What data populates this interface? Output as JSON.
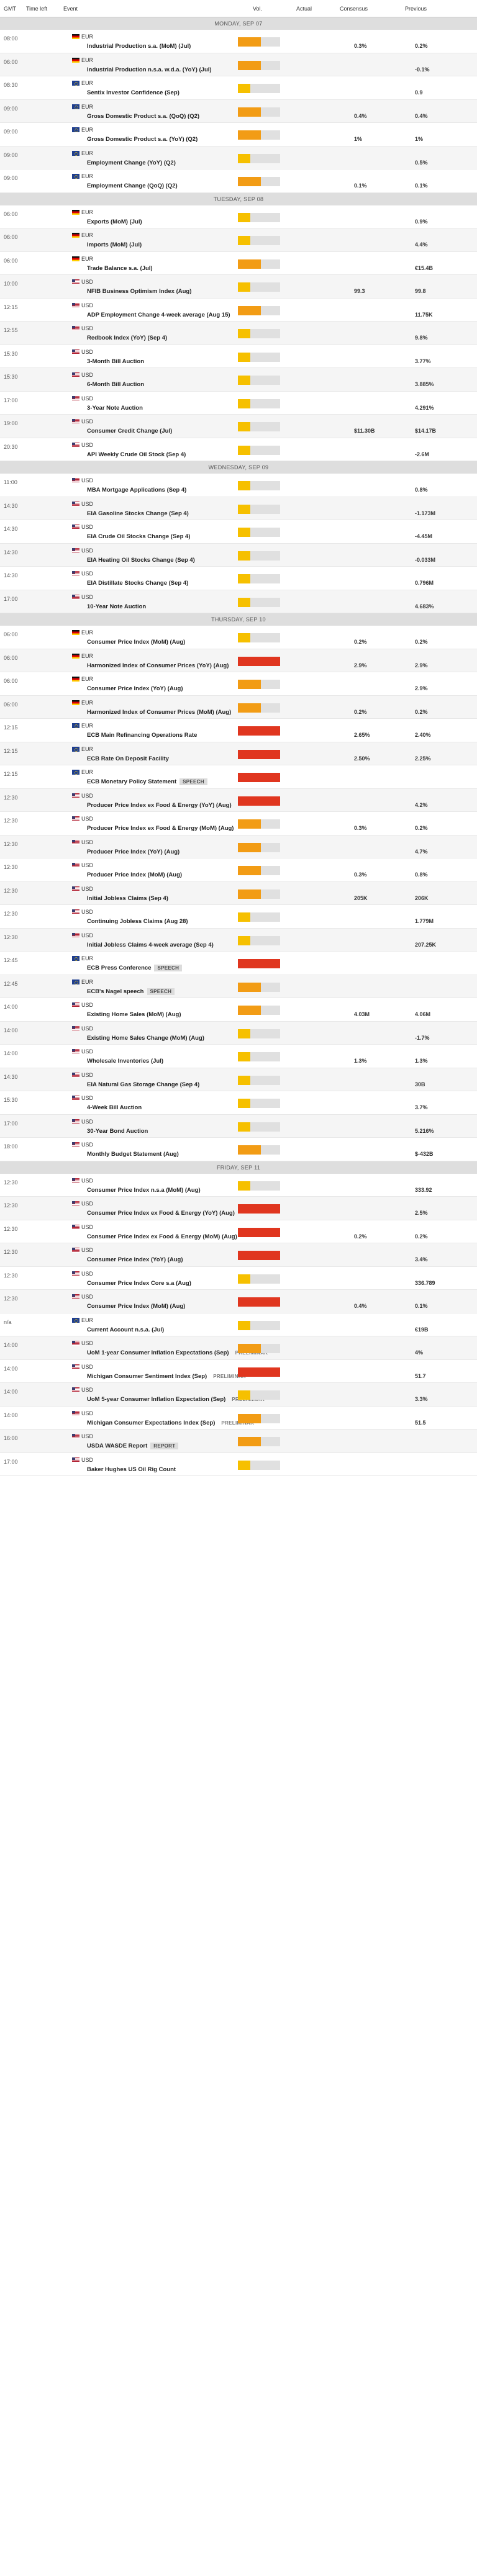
{
  "header": {
    "gmt": "GMT",
    "time_left": "Time left",
    "event": "Event",
    "vol": "Vol.",
    "actual": "Actual",
    "consensus": "Consensus",
    "previous": "Previous"
  },
  "days": [
    {
      "label": "MONDAY, SEP 07",
      "events": [
        {
          "time": "08:00",
          "currency": "EUR",
          "flag": "DE",
          "name": "Industrial Production s.a. (MoM) (Jul)",
          "tag": "",
          "volatility": 0.55,
          "level": "med",
          "actual": "",
          "consensus": "0.3%",
          "previous": "0.2%"
        },
        {
          "time": "06:00",
          "currency": "EUR",
          "flag": "DE",
          "name": "Industrial Production n.s.a. w.d.a. (YoY) (Jul)",
          "tag": "",
          "volatility": 0.55,
          "level": "med",
          "actual": "",
          "consensus": "",
          "previous": "-0.1%"
        },
        {
          "time": "08:30",
          "currency": "EUR",
          "flag": "EUR",
          "name": "Sentix Investor Confidence (Sep)",
          "tag": "",
          "volatility": 0.3,
          "level": "low",
          "actual": "",
          "consensus": "",
          "previous": "0.9"
        },
        {
          "time": "09:00",
          "currency": "EUR",
          "flag": "EUR",
          "name": "Gross Domestic Product s.a. (QoQ) (Q2)",
          "tag": "",
          "volatility": 0.55,
          "level": "med",
          "actual": "",
          "consensus": "0.4%",
          "previous": "0.4%"
        },
        {
          "time": "09:00",
          "currency": "EUR",
          "flag": "EUR",
          "name": "Gross Domestic Product s.a. (YoY) (Q2)",
          "tag": "",
          "volatility": 0.55,
          "level": "med",
          "actual": "",
          "consensus": "1%",
          "previous": "1%"
        },
        {
          "time": "09:00",
          "currency": "EUR",
          "flag": "EUR",
          "name": "Employment Change (YoY) (Q2)",
          "tag": "",
          "volatility": 0.3,
          "level": "low",
          "actual": "",
          "consensus": "",
          "previous": "0.5%"
        },
        {
          "time": "09:00",
          "currency": "EUR",
          "flag": "EUR",
          "name": "Employment Change (QoQ) (Q2)",
          "tag": "",
          "volatility": 0.55,
          "level": "med",
          "actual": "",
          "consensus": "0.1%",
          "previous": "0.1%"
        }
      ]
    },
    {
      "label": "TUESDAY, SEP 08",
      "events": [
        {
          "time": "06:00",
          "currency": "EUR",
          "flag": "DE",
          "name": "Exports (MoM) (Jul)",
          "tag": "",
          "volatility": 0.3,
          "level": "low",
          "actual": "",
          "consensus": "",
          "previous": "0.9%"
        },
        {
          "time": "06:00",
          "currency": "EUR",
          "flag": "DE",
          "name": "Imports (MoM) (Jul)",
          "tag": "",
          "volatility": 0.3,
          "level": "low",
          "actual": "",
          "consensus": "",
          "previous": "4.4%"
        },
        {
          "time": "06:00",
          "currency": "EUR",
          "flag": "DE",
          "name": "Trade Balance s.a. (Jul)",
          "tag": "",
          "volatility": 0.55,
          "level": "med",
          "actual": "",
          "consensus": "",
          "previous": "€15.4B"
        },
        {
          "time": "10:00",
          "currency": "USD",
          "flag": "US",
          "name": "NFIB Business Optimism Index (Aug)",
          "tag": "",
          "volatility": 0.3,
          "level": "low",
          "actual": "",
          "consensus": "99.3",
          "previous": "99.8"
        },
        {
          "time": "12:15",
          "currency": "USD",
          "flag": "US",
          "name": "ADP Employment Change 4-week average (Aug 15)",
          "tag": "",
          "volatility": 0.55,
          "level": "med",
          "actual": "",
          "consensus": "",
          "previous": "11.75K"
        },
        {
          "time": "12:55",
          "currency": "USD",
          "flag": "US",
          "name": "Redbook Index (YoY) (Sep 4)",
          "tag": "",
          "volatility": 0.3,
          "level": "low",
          "actual": "",
          "consensus": "",
          "previous": "9.8%"
        },
        {
          "time": "15:30",
          "currency": "USD",
          "flag": "US",
          "name": "3-Month Bill Auction",
          "tag": "",
          "volatility": 0.3,
          "level": "low",
          "actual": "",
          "consensus": "",
          "previous": "3.77%"
        },
        {
          "time": "15:30",
          "currency": "USD",
          "flag": "US",
          "name": "6-Month Bill Auction",
          "tag": "",
          "volatility": 0.3,
          "level": "low",
          "actual": "",
          "consensus": "",
          "previous": "3.885%"
        },
        {
          "time": "17:00",
          "currency": "USD",
          "flag": "US",
          "name": "3-Year Note Auction",
          "tag": "",
          "volatility": 0.3,
          "level": "low",
          "actual": "",
          "consensus": "",
          "previous": "4.291%"
        },
        {
          "time": "19:00",
          "currency": "USD",
          "flag": "US",
          "name": "Consumer Credit Change (Jul)",
          "tag": "",
          "volatility": 0.3,
          "level": "low",
          "actual": "",
          "consensus": "$11.30B",
          "previous": "$14.17B"
        },
        {
          "time": "20:30",
          "currency": "USD",
          "flag": "US",
          "name": "API Weekly Crude Oil Stock (Sep 4)",
          "tag": "",
          "volatility": 0.3,
          "level": "low",
          "actual": "",
          "consensus": "",
          "previous": "-2.6M"
        }
      ]
    },
    {
      "label": "WEDNESDAY, SEP 09",
      "events": [
        {
          "time": "11:00",
          "currency": "USD",
          "flag": "US",
          "name": "MBA Mortgage Applications (Sep 4)",
          "tag": "",
          "volatility": 0.3,
          "level": "low",
          "actual": "",
          "consensus": "",
          "previous": "0.8%"
        },
        {
          "time": "14:30",
          "currency": "USD",
          "flag": "US",
          "name": "EIA Gasoline Stocks Change (Sep 4)",
          "tag": "",
          "volatility": 0.3,
          "level": "low",
          "actual": "",
          "consensus": "",
          "previous": "-1.173M"
        },
        {
          "time": "14:30",
          "currency": "USD",
          "flag": "US",
          "name": "EIA Crude Oil Stocks Change (Sep 4)",
          "tag": "",
          "volatility": 0.3,
          "level": "low",
          "actual": "",
          "consensus": "",
          "previous": "-4.45M"
        },
        {
          "time": "14:30",
          "currency": "USD",
          "flag": "US",
          "name": "EIA Heating Oil Stocks Change (Sep 4)",
          "tag": "",
          "volatility": 0.3,
          "level": "low",
          "actual": "",
          "consensus": "",
          "previous": "-0.033M"
        },
        {
          "time": "14:30",
          "currency": "USD",
          "flag": "US",
          "name": "EIA Distillate Stocks Change (Sep 4)",
          "tag": "",
          "volatility": 0.3,
          "level": "low",
          "actual": "",
          "consensus": "",
          "previous": "0.796M"
        },
        {
          "time": "17:00",
          "currency": "USD",
          "flag": "US",
          "name": "10-Year Note Auction",
          "tag": "",
          "volatility": 0.3,
          "level": "low",
          "actual": "",
          "consensus": "",
          "previous": "4.683%"
        }
      ]
    },
    {
      "label": "THURSDAY, SEP 10",
      "events": [
        {
          "time": "06:00",
          "currency": "EUR",
          "flag": "DE",
          "name": "Consumer Price Index (MoM) (Aug)",
          "tag": "",
          "volatility": 0.3,
          "level": "low",
          "actual": "",
          "consensus": "0.2%",
          "previous": "0.2%"
        },
        {
          "time": "06:00",
          "currency": "EUR",
          "flag": "DE",
          "name": "Harmonized Index of Consumer Prices (YoY) (Aug)",
          "tag": "",
          "volatility": 1,
          "level": "high",
          "actual": "",
          "consensus": "2.9%",
          "previous": "2.9%"
        },
        {
          "time": "06:00",
          "currency": "EUR",
          "flag": "DE",
          "name": "Consumer Price Index (YoY) (Aug)",
          "tag": "",
          "volatility": 0.55,
          "level": "med",
          "actual": "",
          "consensus": "",
          "previous": "2.9%"
        },
        {
          "time": "06:00",
          "currency": "EUR",
          "flag": "DE",
          "name": "Harmonized Index of Consumer Prices (MoM) (Aug)",
          "tag": "",
          "volatility": 0.55,
          "level": "med",
          "actual": "",
          "consensus": "0.2%",
          "previous": "0.2%"
        },
        {
          "time": "12:15",
          "currency": "EUR",
          "flag": "EUR",
          "name": "ECB Main Refinancing Operations Rate",
          "tag": "",
          "volatility": 1,
          "level": "high",
          "actual": "",
          "consensus": "2.65%",
          "previous": "2.40%"
        },
        {
          "time": "12:15",
          "currency": "EUR",
          "flag": "EUR",
          "name": "ECB Rate On Deposit Facility",
          "tag": "",
          "volatility": 1,
          "level": "high",
          "actual": "",
          "consensus": "2.50%",
          "previous": "2.25%"
        },
        {
          "time": "12:15",
          "currency": "EUR",
          "flag": "EUR",
          "name": "ECB Monetary Policy Statement",
          "tag": "SPEECH",
          "volatility": 1,
          "level": "high",
          "actual": "",
          "consensus": "",
          "previous": ""
        },
        {
          "time": "12:30",
          "currency": "USD",
          "flag": "US",
          "name": "Producer Price Index ex Food & Energy (YoY) (Aug)",
          "tag": "",
          "volatility": 1,
          "level": "high",
          "actual": "",
          "consensus": "",
          "previous": "4.2%"
        },
        {
          "time": "12:30",
          "currency": "USD",
          "flag": "US",
          "name": "Producer Price Index ex Food & Energy (MoM) (Aug)",
          "tag": "",
          "volatility": 0.55,
          "level": "med",
          "actual": "",
          "consensus": "0.3%",
          "previous": "0.2%"
        },
        {
          "time": "12:30",
          "currency": "USD",
          "flag": "US",
          "name": "Producer Price Index (YoY) (Aug)",
          "tag": "",
          "volatility": 0.55,
          "level": "med",
          "actual": "",
          "consensus": "",
          "previous": "4.7%"
        },
        {
          "time": "12:30",
          "currency": "USD",
          "flag": "US",
          "name": "Producer Price Index (MoM) (Aug)",
          "tag": "",
          "volatility": 0.55,
          "level": "med",
          "actual": "",
          "consensus": "0.3%",
          "previous": "0.8%"
        },
        {
          "time": "12:30",
          "currency": "USD",
          "flag": "US",
          "name": "Initial Jobless Claims (Sep 4)",
          "tag": "",
          "volatility": 0.55,
          "level": "med",
          "actual": "",
          "consensus": "205K",
          "previous": "206K"
        },
        {
          "time": "12:30",
          "currency": "USD",
          "flag": "US",
          "name": "Continuing Jobless Claims (Aug 28)",
          "tag": "",
          "volatility": 0.3,
          "level": "low",
          "actual": "",
          "consensus": "",
          "previous": "1.779M"
        },
        {
          "time": "12:30",
          "currency": "USD",
          "flag": "US",
          "name": "Initial Jobless Claims 4-week average (Sep 4)",
          "tag": "",
          "volatility": 0.3,
          "level": "low",
          "actual": "",
          "consensus": "",
          "previous": "207.25K"
        },
        {
          "time": "12:45",
          "currency": "EUR",
          "flag": "EUR",
          "name": "ECB Press Conference",
          "tag": "SPEECH",
          "volatility": 1,
          "level": "high",
          "actual": "",
          "consensus": "",
          "previous": ""
        },
        {
          "time": "12:45",
          "currency": "EUR",
          "flag": "EUR",
          "name": "ECB's Nagel speech",
          "tag": "SPEECH",
          "volatility": 0.55,
          "level": "med",
          "actual": "",
          "consensus": "",
          "previous": ""
        },
        {
          "time": "14:00",
          "currency": "USD",
          "flag": "US",
          "name": "Existing Home Sales (MoM) (Aug)",
          "tag": "",
          "volatility": 0.55,
          "level": "med",
          "actual": "",
          "consensus": "4.03M",
          "previous": "4.06M"
        },
        {
          "time": "14:00",
          "currency": "USD",
          "flag": "US",
          "name": "Existing Home Sales Change (MoM) (Aug)",
          "tag": "",
          "volatility": 0.3,
          "level": "low",
          "actual": "",
          "consensus": "",
          "previous": "-1.7%"
        },
        {
          "time": "14:00",
          "currency": "USD",
          "flag": "US",
          "name": "Wholesale Inventories (Jul)",
          "tag": "",
          "volatility": 0.3,
          "level": "low",
          "actual": "",
          "consensus": "1.3%",
          "previous": "1.3%"
        },
        {
          "time": "14:30",
          "currency": "USD",
          "flag": "US",
          "name": "EIA Natural Gas Storage Change (Sep 4)",
          "tag": "",
          "volatility": 0.3,
          "level": "low",
          "actual": "",
          "consensus": "",
          "previous": "30B"
        },
        {
          "time": "15:30",
          "currency": "USD",
          "flag": "US",
          "name": "4-Week Bill Auction",
          "tag": "",
          "volatility": 0.3,
          "level": "low",
          "actual": "",
          "consensus": "",
          "previous": "3.7%"
        },
        {
          "time": "17:00",
          "currency": "USD",
          "flag": "US",
          "name": "30-Year Bond Auction",
          "tag": "",
          "volatility": 0.3,
          "level": "low",
          "actual": "",
          "consensus": "",
          "previous": "5.216%"
        },
        {
          "time": "18:00",
          "currency": "USD",
          "flag": "US",
          "name": "Monthly Budget Statement (Aug)",
          "tag": "",
          "volatility": 0.55,
          "level": "med",
          "actual": "",
          "consensus": "",
          "previous": "$-432B"
        }
      ]
    },
    {
      "label": "FRIDAY, SEP 11",
      "events": [
        {
          "time": "12:30",
          "currency": "USD",
          "flag": "US",
          "name": "Consumer Price Index n.s.a (MoM) (Aug)",
          "tag": "",
          "volatility": 0.3,
          "level": "low",
          "actual": "",
          "consensus": "",
          "previous": "333.92"
        },
        {
          "time": "12:30",
          "currency": "USD",
          "flag": "US",
          "name": "Consumer Price Index ex Food & Energy (YoY) (Aug)",
          "tag": "",
          "volatility": 1,
          "level": "high",
          "actual": "",
          "consensus": "",
          "previous": "2.5%"
        },
        {
          "time": "12:30",
          "currency": "USD",
          "flag": "US",
          "name": "Consumer Price Index ex Food & Energy (MoM) (Aug)",
          "tag": "",
          "volatility": 1,
          "level": "high",
          "actual": "",
          "consensus": "0.2%",
          "previous": "0.2%"
        },
        {
          "time": "12:30",
          "currency": "USD",
          "flag": "US",
          "name": "Consumer Price Index (YoY) (Aug)",
          "tag": "",
          "volatility": 1,
          "level": "high",
          "actual": "",
          "consensus": "",
          "previous": "3.4%"
        },
        {
          "time": "12:30",
          "currency": "USD",
          "flag": "US",
          "name": "Consumer Price Index Core s.a (Aug)",
          "tag": "",
          "volatility": 0.3,
          "level": "low",
          "actual": "",
          "consensus": "",
          "previous": "336.789"
        },
        {
          "time": "12:30",
          "currency": "USD",
          "flag": "US",
          "name": "Consumer Price Index (MoM) (Aug)",
          "tag": "",
          "volatility": 1,
          "level": "high",
          "actual": "",
          "consensus": "0.4%",
          "previous": "0.1%"
        },
        {
          "time": "n/a",
          "currency": "EUR",
          "flag": "EUR",
          "name": "Current Account n.s.a. (Jul)",
          "tag": "",
          "volatility": 0.3,
          "level": "low",
          "actual": "",
          "consensus": "",
          "previous": "€19B"
        },
        {
          "time": "14:00",
          "currency": "USD",
          "flag": "US",
          "name": "UoM 1-year Consumer Inflation Expectations (Sep)",
          "tag": "PRELIMINAR",
          "volatility": 0.55,
          "level": "med",
          "actual": "",
          "consensus": "",
          "previous": "4%"
        },
        {
          "time": "14:00",
          "currency": "USD",
          "flag": "US",
          "name": "Michigan Consumer Sentiment Index (Sep)",
          "tag": "PRELIMINAR",
          "volatility": 1,
          "level": "high",
          "actual": "",
          "consensus": "",
          "previous": "51.7"
        },
        {
          "time": "14:00",
          "currency": "USD",
          "flag": "US",
          "name": "UoM 5-year Consumer Inflation Expectation (Sep)",
          "tag": "PRELIMINAR",
          "volatility": 0.3,
          "level": "low",
          "actual": "",
          "consensus": "",
          "previous": "3.3%"
        },
        {
          "time": "14:00",
          "currency": "USD",
          "flag": "US",
          "name": "Michigan Consumer Expectations Index (Sep)",
          "tag": "PRELIMINAR",
          "volatility": 0.55,
          "level": "med",
          "actual": "",
          "consensus": "",
          "previous": "51.5"
        },
        {
          "time": "16:00",
          "currency": "USD",
          "flag": "US",
          "name": "USDA WASDE Report",
          "tag": "REPORT",
          "volatility": 0.55,
          "level": "med",
          "actual": "",
          "consensus": "",
          "previous": ""
        },
        {
          "time": "17:00",
          "currency": "USD",
          "flag": "US",
          "name": "Baker Hughes US Oil Rig Count",
          "tag": "",
          "volatility": 0.3,
          "level": "low",
          "actual": "",
          "consensus": "",
          "previous": ""
        }
      ]
    }
  ]
}
